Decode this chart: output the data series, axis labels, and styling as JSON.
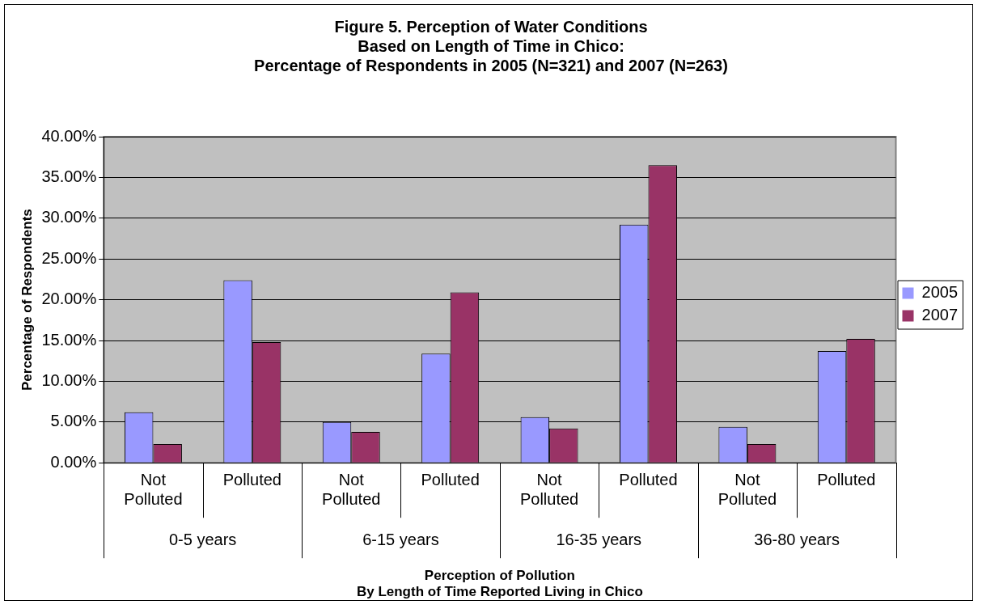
{
  "chart_data": {
    "type": "bar",
    "title": "Figure 5. Perception of Water Conditions\nBased on Length of Time in Chico:\nPercentage of Respondents in 2005 (N=321) and 2007 (N=263)",
    "xlabel": "Perception of Pollution\nBy Length of Time Reported Living in Chico",
    "ylabel": "Percentage of Respondents",
    "categories": [
      "Not Polluted",
      "Polluted",
      "Not Polluted",
      "Polluted",
      "Not Polluted",
      "Polluted",
      "Not Polluted",
      "Polluted"
    ],
    "annotations": [
      "0-5 years",
      "6-15 years",
      "16-35 years",
      "36-80 years"
    ],
    "series": [
      {
        "name": "2005",
        "color": "#9999ff",
        "values": [
          6.2,
          22.4,
          5.0,
          13.4,
          5.6,
          29.2,
          4.4,
          13.7
        ]
      },
      {
        "name": "2007",
        "color": "#993366",
        "values": [
          2.3,
          14.8,
          3.8,
          20.9,
          4.2,
          36.5,
          2.3,
          15.2
        ]
      }
    ],
    "ylim": [
      0,
      40
    ],
    "yticks": [
      {
        "value": 0,
        "label": "0.00%"
      },
      {
        "value": 5,
        "label": "5.00%"
      },
      {
        "value": 10,
        "label": "10.00%"
      },
      {
        "value": 15,
        "label": "15.00%"
      },
      {
        "value": 20,
        "label": "20.00%"
      },
      {
        "value": 25,
        "label": "25.00%"
      },
      {
        "value": 30,
        "label": "30.00%"
      },
      {
        "value": 35,
        "label": "35.00%"
      },
      {
        "value": 40,
        "label": "40.00%"
      }
    ],
    "grid": "y",
    "legend": "right"
  }
}
